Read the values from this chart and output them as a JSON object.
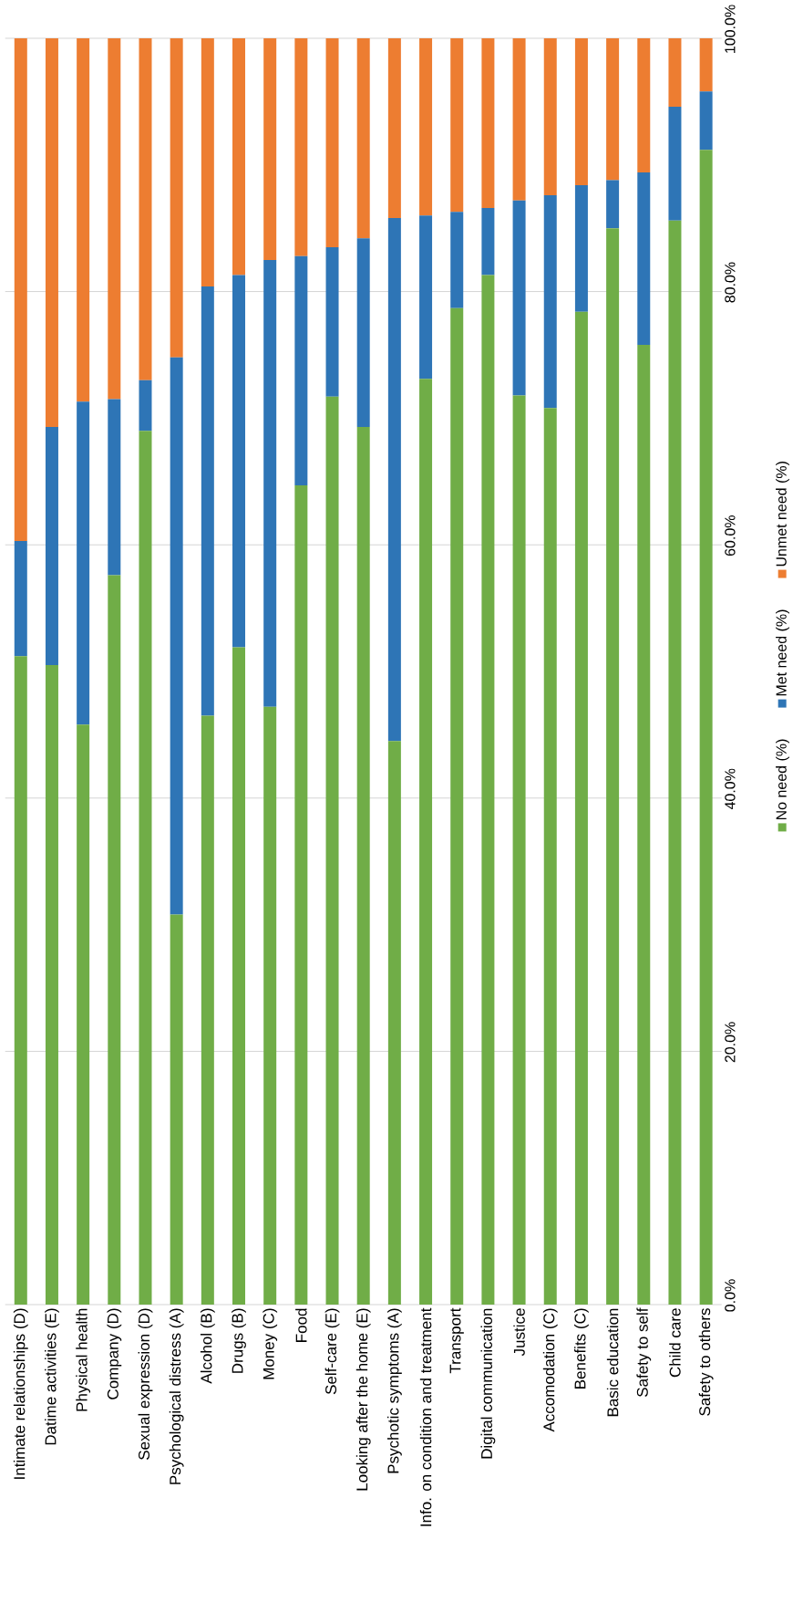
{
  "chart_data": {
    "type": "bar",
    "stacked": true,
    "categories": [
      "Intimate relationships (D)",
      "Datime activities (E)",
      "Physical health",
      "Company (D)",
      "Sexual expression (D)",
      "Psychological distress (A)",
      "Alcohol (B)",
      "Drugs (B)",
      "Money (C)",
      "Food",
      "Self-care (E)",
      "Looking after the home (E)",
      "Psychotic symptoms (A)",
      "Info. on condition and treatment",
      "Transport",
      "Digital communication",
      "Justice",
      "Accomodation (C)",
      "Benefits (C)",
      "Basic education",
      "Safety to self",
      "Child care",
      "Safety to others"
    ],
    "series": [
      {
        "name": "No need (%)",
        "color": "#70ad47",
        "values": [
          51.2,
          50.5,
          45.8,
          57.6,
          69.0,
          30.8,
          46.5,
          51.9,
          47.2,
          64.7,
          71.7,
          69.3,
          44.5,
          73.1,
          78.7,
          81.3,
          71.8,
          70.8,
          78.4,
          85.0,
          75.8,
          85.6,
          91.2
        ]
      },
      {
        "name": "Met need (%)",
        "color": "#2e75b6",
        "values": [
          9.1,
          18.8,
          25.5,
          13.9,
          4.0,
          44.0,
          33.9,
          29.4,
          35.3,
          18.1,
          11.8,
          14.9,
          41.3,
          12.9,
          7.6,
          5.3,
          15.4,
          16.8,
          10.0,
          3.8,
          13.6,
          9.0,
          4.6
        ]
      },
      {
        "name": "Unmet need (%)",
        "color": "#ed7d31",
        "values": [
          39.7,
          30.7,
          28.7,
          28.5,
          27.0,
          25.2,
          19.6,
          18.7,
          17.5,
          17.2,
          16.5,
          15.8,
          14.2,
          14.0,
          13.7,
          13.4,
          12.8,
          12.4,
          11.6,
          11.2,
          10.6,
          5.4,
          4.2
        ]
      }
    ],
    "ylim": [
      0,
      100
    ],
    "yticks": [
      {
        "value": 0,
        "label": "0.0%"
      },
      {
        "value": 20,
        "label": "20.0%"
      },
      {
        "value": 40,
        "label": "40.0%"
      },
      {
        "value": 60,
        "label": "60.0%"
      },
      {
        "value": 80,
        "label": "80.0%"
      },
      {
        "value": 100,
        "label": "100.0%"
      }
    ],
    "grid": "y",
    "legend": "right"
  }
}
